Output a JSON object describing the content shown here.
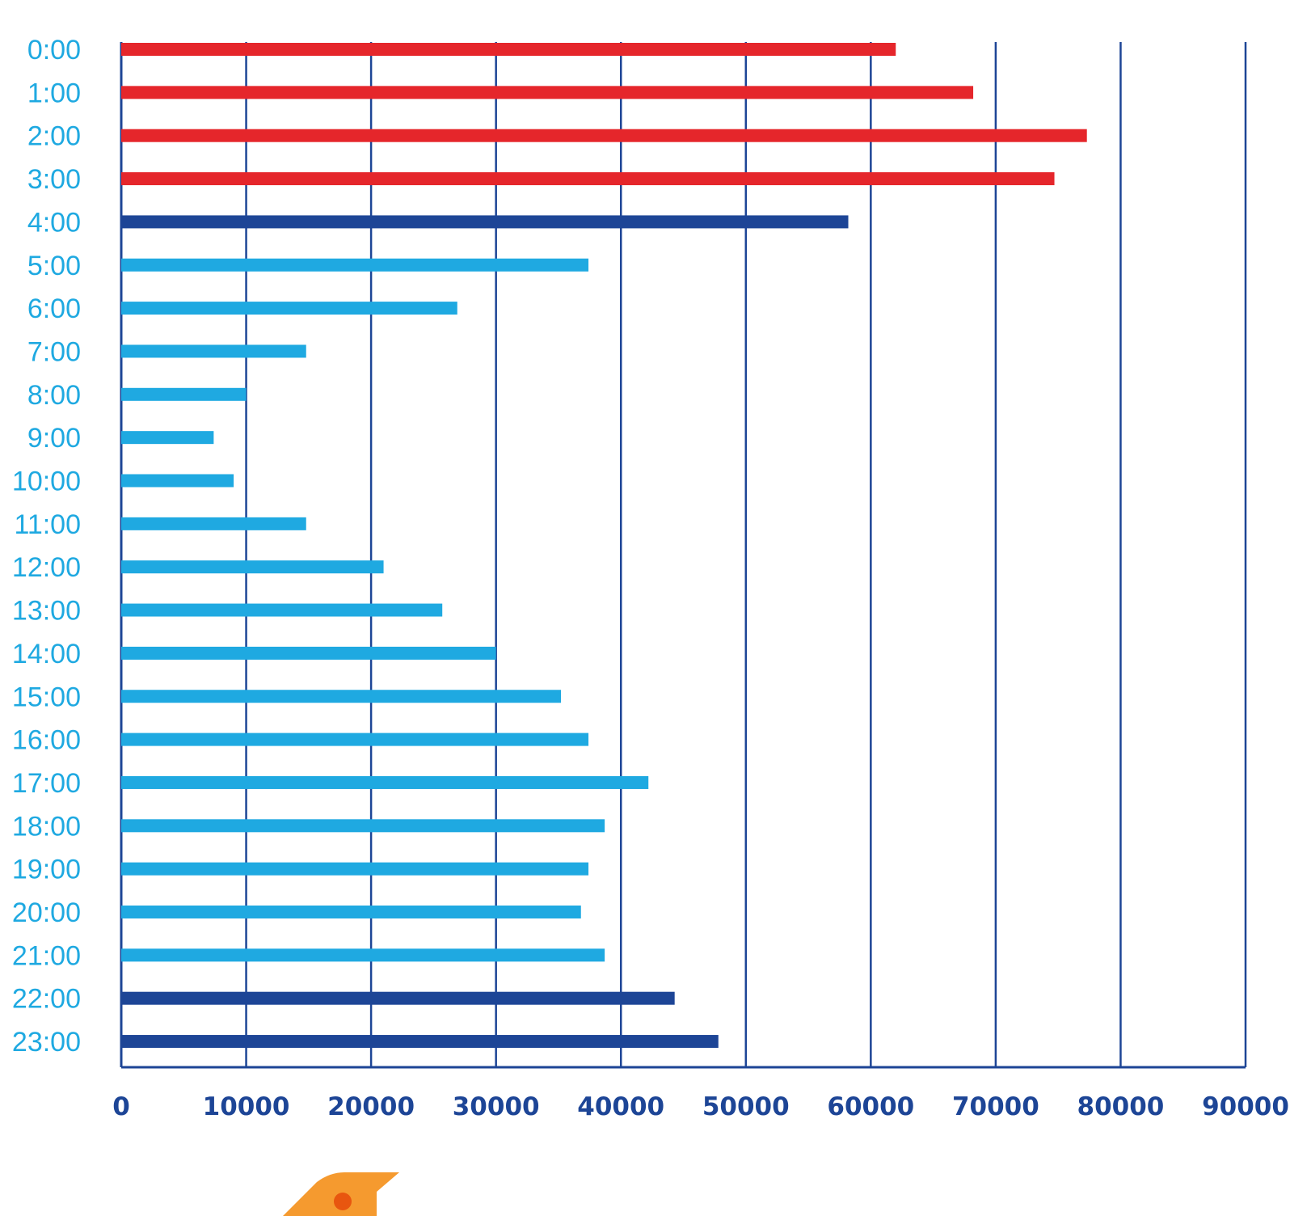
{
  "chart_data": {
    "type": "bar",
    "orientation": "horizontal",
    "title": "",
    "xlabel": "",
    "ylabel": "",
    "xlim": [
      0,
      90000
    ],
    "x_ticks": [
      "0",
      "10000",
      "20000",
      "30000",
      "40000",
      "50000",
      "60000",
      "70000",
      "80000",
      "90000"
    ],
    "grid": "vertical",
    "categories": [
      "0:00",
      "1:00",
      "2:00",
      "3:00",
      "4:00",
      "5:00",
      "6:00",
      "7:00",
      "8:00",
      "9:00",
      "10:00",
      "11:00",
      "12:00",
      "13:00",
      "14:00",
      "15:00",
      "16:00",
      "17:00",
      "18:00",
      "19:00",
      "20:00",
      "21:00",
      "22:00",
      "23:00"
    ],
    "values": [
      62000,
      68200,
      77300,
      74700,
      58200,
      37400,
      26900,
      14800,
      10000,
      7400,
      9000,
      14800,
      21000,
      25700,
      30000,
      35200,
      37400,
      42200,
      38700,
      37400,
      36800,
      38700,
      44300,
      47800
    ],
    "bar_color_groups": [
      "red",
      "red",
      "red",
      "red",
      "dark",
      "light",
      "light",
      "light",
      "light",
      "light",
      "light",
      "light",
      "light",
      "light",
      "light",
      "light",
      "light",
      "light",
      "light",
      "light",
      "light",
      "light",
      "dark",
      "dark"
    ],
    "colors": {
      "red": "#e5262b",
      "dark": "#1d4596",
      "light": "#1fa9e1",
      "axis": "#1d4596",
      "ytick_text": "#1fa9e1",
      "xtick_text": "#1d4596"
    }
  },
  "decoration": {
    "bird_color": "#f59a2f",
    "eye_color": "#e8560f"
  }
}
